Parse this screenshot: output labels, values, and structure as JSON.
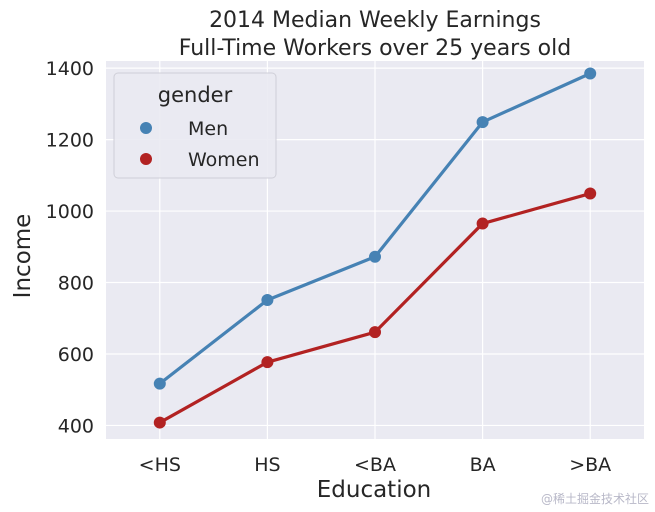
{
  "chart_data": {
    "type": "line",
    "title": [
      "2014 Median Weekly Earnings",
      "Full-Time Workers over 25 years old"
    ],
    "xlabel": "Education",
    "ylabel": "Income",
    "categories": [
      "<HS",
      "HS",
      "<BA",
      "BA",
      ">BA"
    ],
    "yticks": [
      400,
      600,
      800,
      1000,
      1200,
      1400
    ],
    "ylim": [
      362,
      1420
    ],
    "grid": true,
    "legend": {
      "title": "gender",
      "placement": "upper-left"
    },
    "series": [
      {
        "name": "Men",
        "color": "#4682b4",
        "values": [
          517,
          751,
          872,
          1249,
          1385
        ]
      },
      {
        "name": "Women",
        "color": "#b22222",
        "values": [
          408,
          577,
          661,
          965,
          1049
        ]
      }
    ]
  },
  "watermark": "@稀土掘金技术社区"
}
